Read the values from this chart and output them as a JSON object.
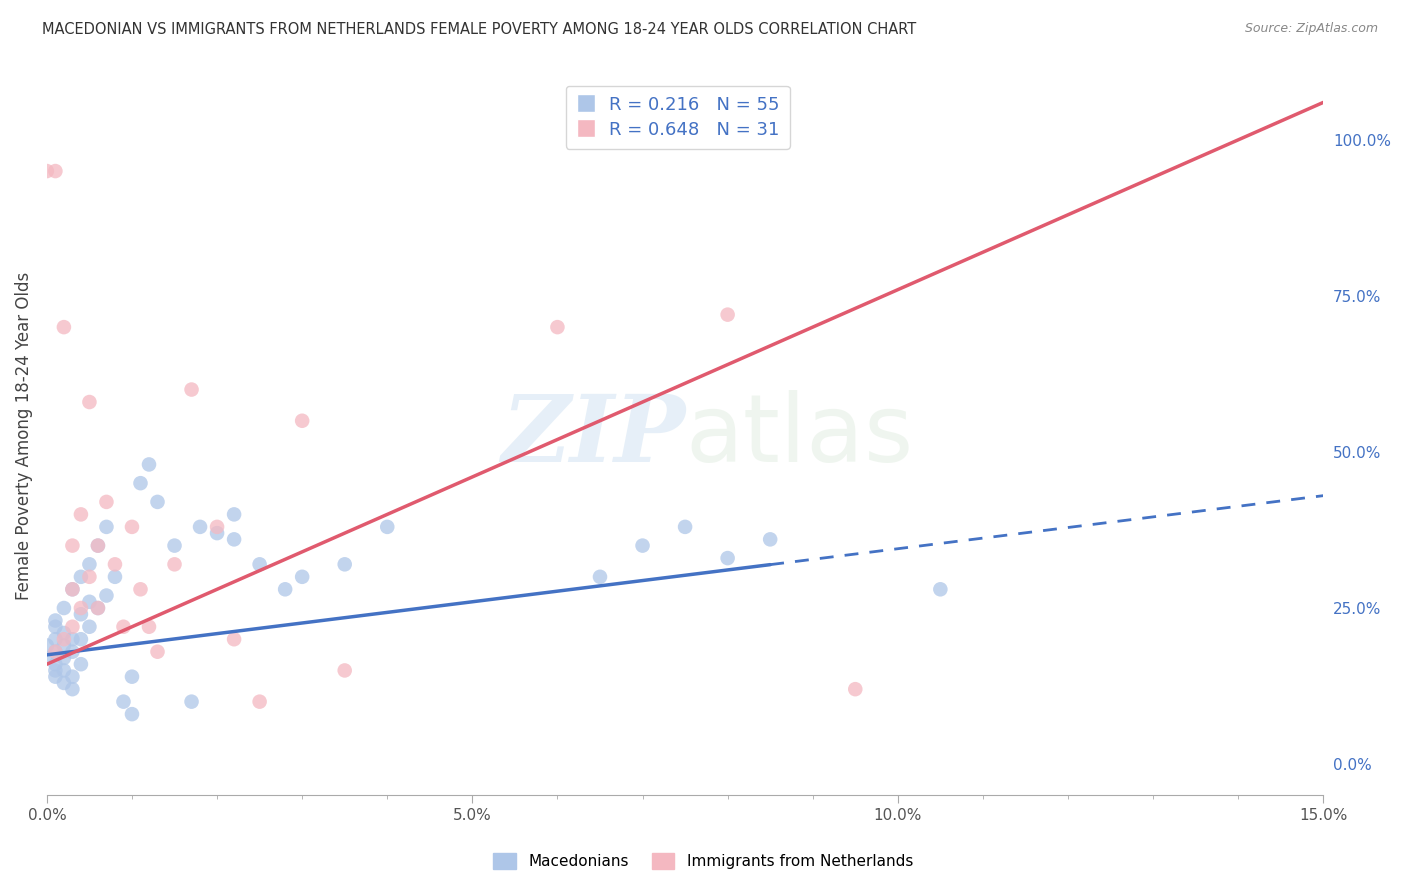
{
  "title": "MACEDONIAN VS IMMIGRANTS FROM NETHERLANDS FEMALE POVERTY AMONG 18-24 YEAR OLDS CORRELATION CHART",
  "source": "Source: ZipAtlas.com",
  "ylabel": "Female Poverty Among 18-24 Year Olds",
  "xlim": [
    0,
    0.15
  ],
  "ylim": [
    -0.05,
    1.1
  ],
  "xticks": [
    0.0,
    0.05,
    0.1,
    0.15
  ],
  "xticklabels": [
    "0.0%",
    "5.0%",
    "10.0%",
    "15.0%"
  ],
  "yticks_right": [
    0.0,
    0.25,
    0.5,
    0.75,
    1.0
  ],
  "yticklabels_right": [
    "0.0%",
    "25.0%",
    "50.0%",
    "75.0%",
    "100.0%"
  ],
  "grid_color": "#cccccc",
  "background_color": "#ffffff",
  "macedonian_color": "#aec6e8",
  "netherlands_color": "#f4b8c1",
  "trend_blue": "#4472c4",
  "trend_pink": "#e05a6e",
  "R_mac": 0.216,
  "N_mac": 55,
  "R_neth": 0.648,
  "N_neth": 31,
  "watermark_zip": "ZIP",
  "watermark_atlas": "atlas",
  "macedonians_label": "Macedonians",
  "netherlands_label": "Immigrants from Netherlands",
  "mac_x": [
    0.0,
    0.0,
    0.001,
    0.001,
    0.001,
    0.001,
    0.001,
    0.001,
    0.001,
    0.002,
    0.002,
    0.002,
    0.002,
    0.002,
    0.002,
    0.003,
    0.003,
    0.003,
    0.003,
    0.003,
    0.004,
    0.004,
    0.004,
    0.004,
    0.005,
    0.005,
    0.005,
    0.006,
    0.006,
    0.007,
    0.007,
    0.008,
    0.009,
    0.01,
    0.01,
    0.011,
    0.012,
    0.013,
    0.015,
    0.017,
    0.018,
    0.02,
    0.022,
    0.022,
    0.025,
    0.028,
    0.03,
    0.035,
    0.04,
    0.065,
    0.07,
    0.075,
    0.08,
    0.085,
    0.105
  ],
  "mac_y": [
    0.17,
    0.19,
    0.14,
    0.16,
    0.18,
    0.2,
    0.22,
    0.15,
    0.23,
    0.13,
    0.15,
    0.17,
    0.19,
    0.21,
    0.25,
    0.12,
    0.14,
    0.18,
    0.2,
    0.28,
    0.16,
    0.2,
    0.24,
    0.3,
    0.22,
    0.26,
    0.32,
    0.25,
    0.35,
    0.27,
    0.38,
    0.3,
    0.1,
    0.08,
    0.14,
    0.45,
    0.48,
    0.42,
    0.35,
    0.1,
    0.38,
    0.37,
    0.36,
    0.4,
    0.32,
    0.28,
    0.3,
    0.32,
    0.38,
    0.3,
    0.35,
    0.38,
    0.33,
    0.36,
    0.28
  ],
  "neth_x": [
    0.0,
    0.001,
    0.001,
    0.002,
    0.002,
    0.003,
    0.003,
    0.003,
    0.004,
    0.004,
    0.005,
    0.005,
    0.006,
    0.006,
    0.007,
    0.008,
    0.009,
    0.01,
    0.011,
    0.012,
    0.013,
    0.015,
    0.017,
    0.02,
    0.022,
    0.025,
    0.03,
    0.035,
    0.06,
    0.08,
    0.095
  ],
  "neth_y": [
    0.95,
    0.95,
    0.18,
    0.7,
    0.2,
    0.22,
    0.28,
    0.35,
    0.25,
    0.4,
    0.3,
    0.58,
    0.25,
    0.35,
    0.42,
    0.32,
    0.22,
    0.38,
    0.28,
    0.22,
    0.18,
    0.32,
    0.6,
    0.38,
    0.2,
    0.1,
    0.55,
    0.15,
    0.7,
    0.72,
    0.12
  ]
}
